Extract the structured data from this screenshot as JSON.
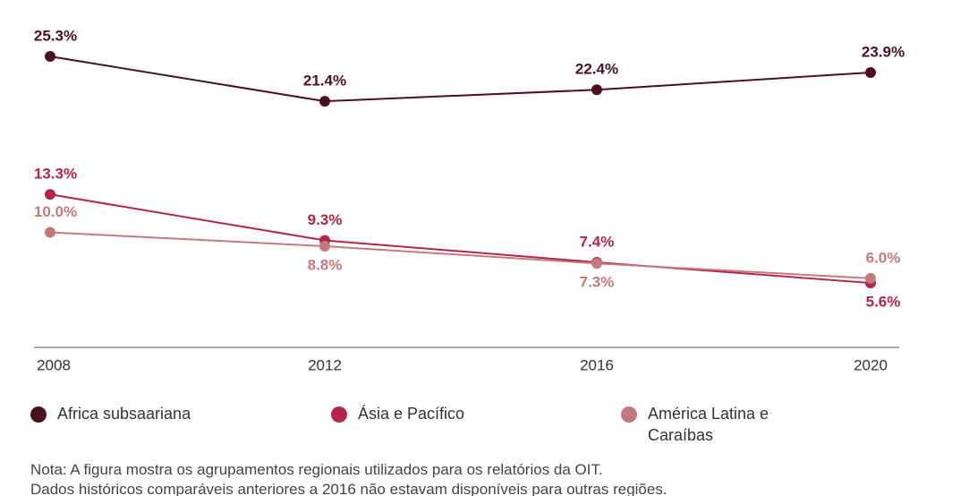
{
  "chart_data": {
    "type": "line",
    "categories": [
      "2008",
      "2012",
      "2016",
      "2020"
    ],
    "series": [
      {
        "name": "Africa subsaariana",
        "color": "#4a1020",
        "values": [
          25.3,
          21.4,
          22.4,
          23.9
        ],
        "value_labels": [
          "25.3%",
          "21.4%",
          "22.4%",
          "23.9%"
        ]
      },
      {
        "name": "Ásia e Pacífico",
        "color": "#b3264a",
        "values": [
          13.3,
          9.3,
          7.4,
          5.6
        ],
        "value_labels": [
          "13.3%",
          "9.3%",
          "7.4%",
          "5.6%"
        ]
      },
      {
        "name": "América Latina e Caraíbas",
        "color": "#c47a7b",
        "values": [
          10.0,
          8.8,
          7.3,
          6.0
        ],
        "value_labels": [
          "10.0%",
          "8.8%",
          "7.3%",
          "6.0%"
        ]
      }
    ],
    "note": [
      "Nota: A figura mostra os agrupamentos regionais utilizados para os relatórios da OIT.",
      "Dados históricos comparáveis anteriores a 2016 não estavam disponíveis para outras regiões."
    ]
  }
}
